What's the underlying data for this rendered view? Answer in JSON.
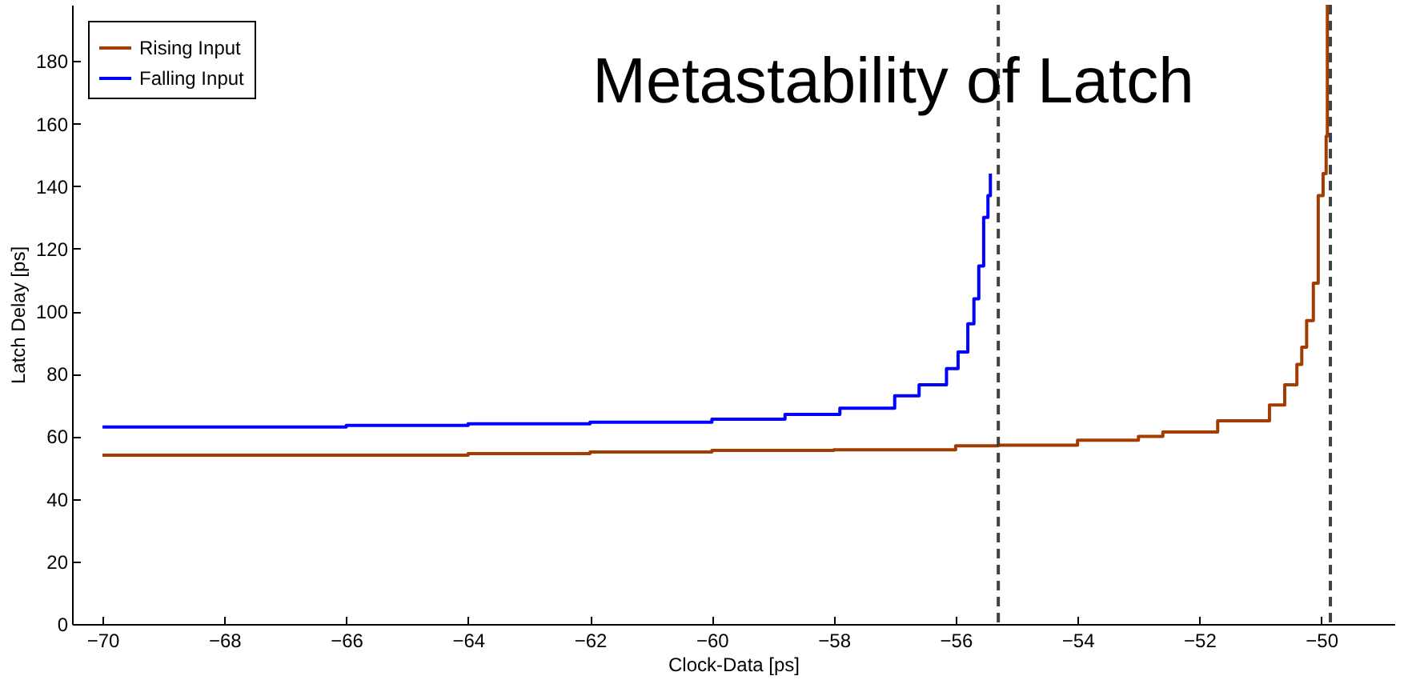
{
  "chart_data": {
    "type": "step",
    "title": "Metastability of Latch",
    "xlabel": "Clock-Data [ps]",
    "ylabel": "Latch Delay [ps]",
    "xlim": [
      -70.5,
      -48.8
    ],
    "ylim": [
      0,
      198
    ],
    "xticks": [
      -70,
      -68,
      -66,
      -64,
      -62,
      -60,
      -58,
      -56,
      -54,
      -52,
      -50
    ],
    "yticks": [
      0,
      20,
      40,
      60,
      80,
      100,
      120,
      140,
      160,
      180
    ],
    "legend": "top left",
    "grid": false,
    "line_style": "solid",
    "marker": "none",
    "ref_lines": [
      {
        "axis": "x",
        "value": -55.3,
        "color": "#404040",
        "line_style": "dashed"
      },
      {
        "axis": "x",
        "value": -49.85,
        "color": "#404040",
        "line_style": "dashed"
      }
    ],
    "series": [
      {
        "name": "Rising Input",
        "color": "#a33c00",
        "x": [
          -70,
          -68,
          -66,
          -64,
          -62,
          -60,
          -58,
          -56,
          -55.3,
          -54,
          -53,
          -52.6,
          -51.7,
          -50.85,
          -50.6,
          -50.4,
          -50.32,
          -50.24,
          -50.13,
          -50.05,
          -49.97,
          -49.92,
          -49.9
        ],
        "values": [
          54,
          54,
          54,
          54.5,
          55,
          55.5,
          55.7,
          57,
          57.2,
          58.8,
          60,
          61.4,
          65,
          70,
          76.5,
          83,
          88.5,
          97,
          109,
          137,
          144,
          156,
          198
        ]
      },
      {
        "name": "Falling Input",
        "color": "#0000ff",
        "x": [
          -70,
          -66,
          -64,
          -62,
          -60,
          -58.8,
          -57.9,
          -57,
          -56.6,
          -56.15,
          -55.96,
          -55.8,
          -55.7,
          -55.62,
          -55.54,
          -55.47,
          -55.43
        ],
        "values": [
          63,
          63.5,
          64,
          64.5,
          65.5,
          67,
          69,
          73,
          76.5,
          81.7,
          87,
          96,
          104,
          114.5,
          130,
          137,
          144
        ]
      }
    ]
  }
}
